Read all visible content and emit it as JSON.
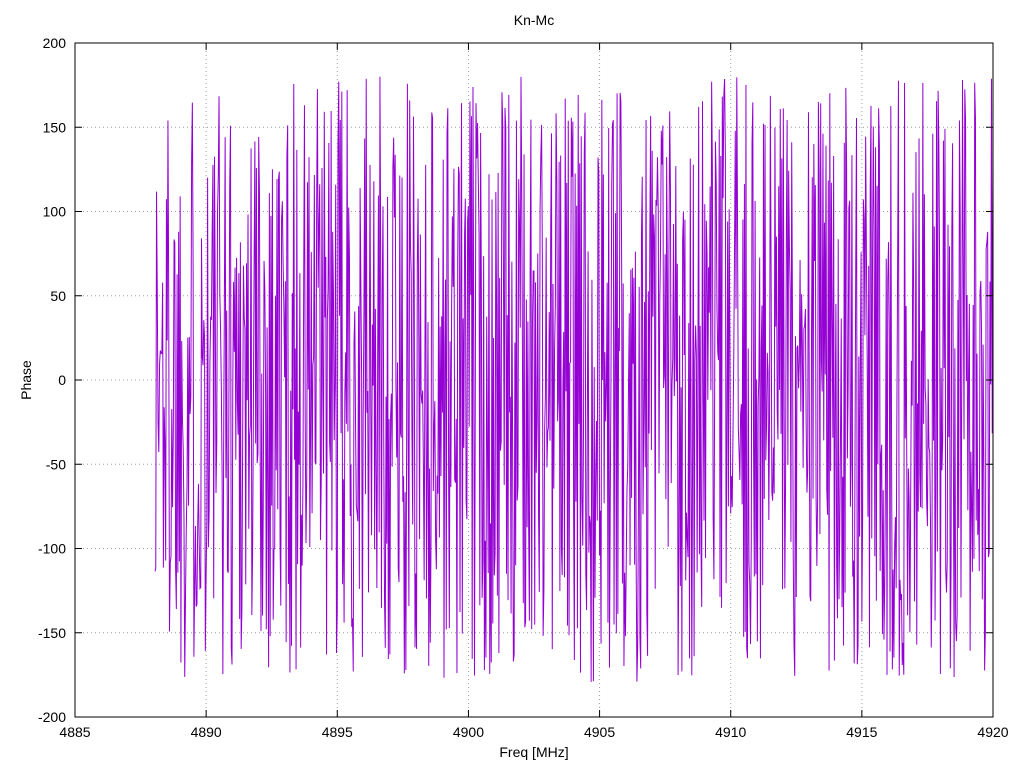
{
  "figure": {
    "background_color": "#ffffff",
    "text_color": "#000000",
    "grid_color": "#9e9e9e",
    "border_color": "#000000"
  },
  "chart_data": {
    "type": "line",
    "title": "Kn-Mc",
    "xlabel": "Freq [MHz]",
    "ylabel": "Phase",
    "xlim": [
      4885,
      4920
    ],
    "ylim": [
      -200,
      200
    ],
    "x_ticks": [
      4885,
      4890,
      4895,
      4900,
      4905,
      4910,
      4915,
      4920
    ],
    "y_ticks": [
      -200,
      -150,
      -100,
      -50,
      0,
      50,
      100,
      150,
      200
    ],
    "grid": true,
    "grid_style": "dotted",
    "legend_position": "none",
    "series": [
      {
        "name": "Kn-Mc",
        "color": "#9400d3",
        "line_width": 1,
        "x_start": 4888.05,
        "x_end": 4920.0,
        "n_points": 1100,
        "y_min": -180,
        "y_max": 180,
        "distribution": "uniform",
        "seed": 1337,
        "description": "Wrapped interferometric phase (degrees) vs frequency; values appear as dense uniform random noise between -180 and +180 over 4888-4920 MHz, no data plotted below 4888 MHz."
      }
    ]
  }
}
